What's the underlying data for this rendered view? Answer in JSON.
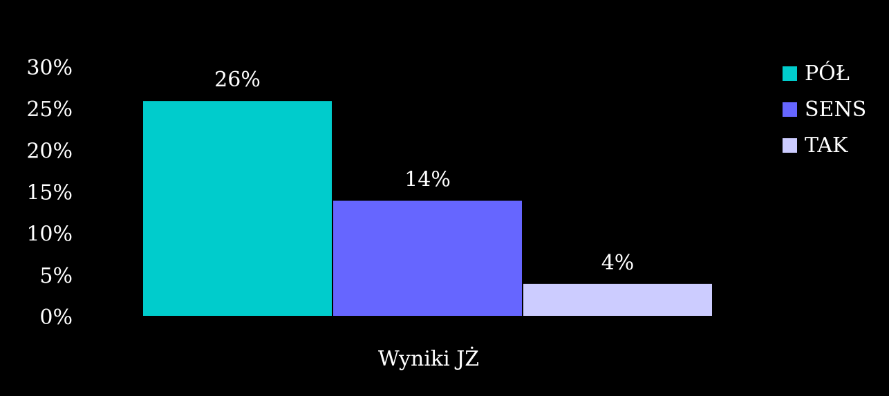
{
  "chart_data": {
    "type": "bar",
    "xlabel": "Wyniki JŻ",
    "ylabel": "",
    "ylim": [
      0,
      30
    ],
    "yticks": [
      {
        "value": 0,
        "label": "0%"
      },
      {
        "value": 5,
        "label": "5%"
      },
      {
        "value": 10,
        "label": "10%"
      },
      {
        "value": 15,
        "label": "15%"
      },
      {
        "value": 20,
        "label": "20%"
      },
      {
        "value": 25,
        "label": "25%"
      },
      {
        "value": 30,
        "label": "30%"
      }
    ],
    "grid": false,
    "legend_position": "top-right",
    "series": [
      {
        "name": "PÓŁ",
        "value": 26,
        "label": "26%",
        "color": "#00CCCC"
      },
      {
        "name": "SENS",
        "value": 14,
        "label": "14%",
        "color": "#6666FF"
      },
      {
        "name": "TAK",
        "value": 4,
        "label": "4%",
        "color": "#CCCCFF"
      }
    ]
  }
}
